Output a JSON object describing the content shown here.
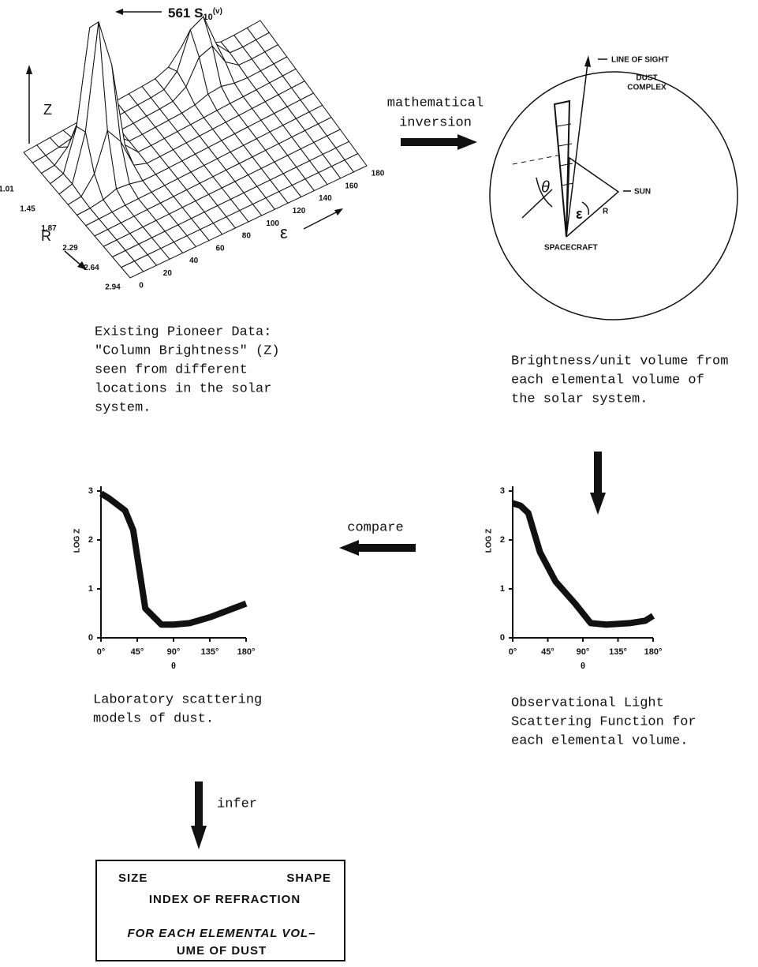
{
  "surface_plot": {
    "peak_label": {
      "value": "561",
      "unit": "S",
      "sub": "10",
      "sup": "(v)"
    },
    "z_label": "Z",
    "r_label": "R",
    "e_label": "ε",
    "r_ticks": [
      1.01,
      1.45,
      1.87,
      2.29,
      2.64,
      2.94
    ],
    "e_ticks": [
      0,
      20,
      40,
      60,
      80,
      100,
      120,
      140,
      160,
      180
    ]
  },
  "inversion_label": [
    "mathematical",
    "inversion"
  ],
  "geometry": {
    "line_of_sight": "LINE OF SIGHT",
    "dust_complex": [
      "DUST",
      "COMPLEX"
    ],
    "sun": "SUN",
    "spacecraft": "SPACECRAFT",
    "theta": "θ",
    "epsilon": "ε",
    "r": "R"
  },
  "captions": {
    "pioneer": [
      "Existing Pioneer Data:",
      "\"Column Brightness\" (Z)",
      "seen from different",
      "locations in the solar",
      "system."
    ],
    "brightness": [
      "Brightness/unit volume from",
      "each elemental volume of",
      "the solar system."
    ],
    "laboratory": [
      "Laboratory scattering",
      "models of dust."
    ],
    "observational": [
      "Observational Light",
      "Scattering Function for",
      "each elemental volume."
    ]
  },
  "compare_label": "compare",
  "infer_label": "infer",
  "result_box": {
    "size": "SIZE",
    "shape": "SHAPE",
    "index": "INDEX OF REFRACTION",
    "volume": [
      "FOR EACH ELEMENTAL VOL–",
      "UME OF DUST"
    ]
  },
  "chart_data": [
    {
      "type": "line",
      "xlabel": "θ",
      "ylabel": "LOG Z",
      "color": "#111111",
      "x": [
        0,
        10,
        30,
        40,
        55,
        75,
        90,
        110,
        135,
        180
      ],
      "values": [
        2.95,
        2.85,
        2.6,
        2.2,
        0.6,
        0.27,
        0.27,
        0.3,
        0.42,
        0.7
      ],
      "xlim": [
        0,
        180
      ],
      "ylim": [
        0,
        3
      ],
      "xticks": [
        {
          "value": 0,
          "label": "0°"
        },
        {
          "value": 45,
          "label": "45°"
        },
        {
          "value": 90,
          "label": "90°"
        },
        {
          "value": 135,
          "label": "135°"
        },
        {
          "value": 180,
          "label": "180°"
        }
      ],
      "yticks": [
        0,
        1,
        2,
        3
      ]
    },
    {
      "type": "line",
      "xlabel": "θ",
      "ylabel": "LOG Z",
      "color": "#111111",
      "x": [
        0,
        10,
        20,
        35,
        55,
        80,
        100,
        120,
        150,
        170,
        180
      ],
      "values": [
        2.75,
        2.7,
        2.55,
        1.75,
        1.15,
        0.7,
        0.3,
        0.27,
        0.3,
        0.35,
        0.45
      ],
      "xlim": [
        0,
        180
      ],
      "ylim": [
        0,
        3
      ],
      "xticks": [
        {
          "value": 0,
          "label": "0°"
        },
        {
          "value": 45,
          "label": "45°"
        },
        {
          "value": 90,
          "label": "90°"
        },
        {
          "value": 135,
          "label": "135°"
        },
        {
          "value": 180,
          "label": "180°"
        }
      ],
      "yticks": [
        0,
        1,
        2,
        3
      ]
    }
  ]
}
